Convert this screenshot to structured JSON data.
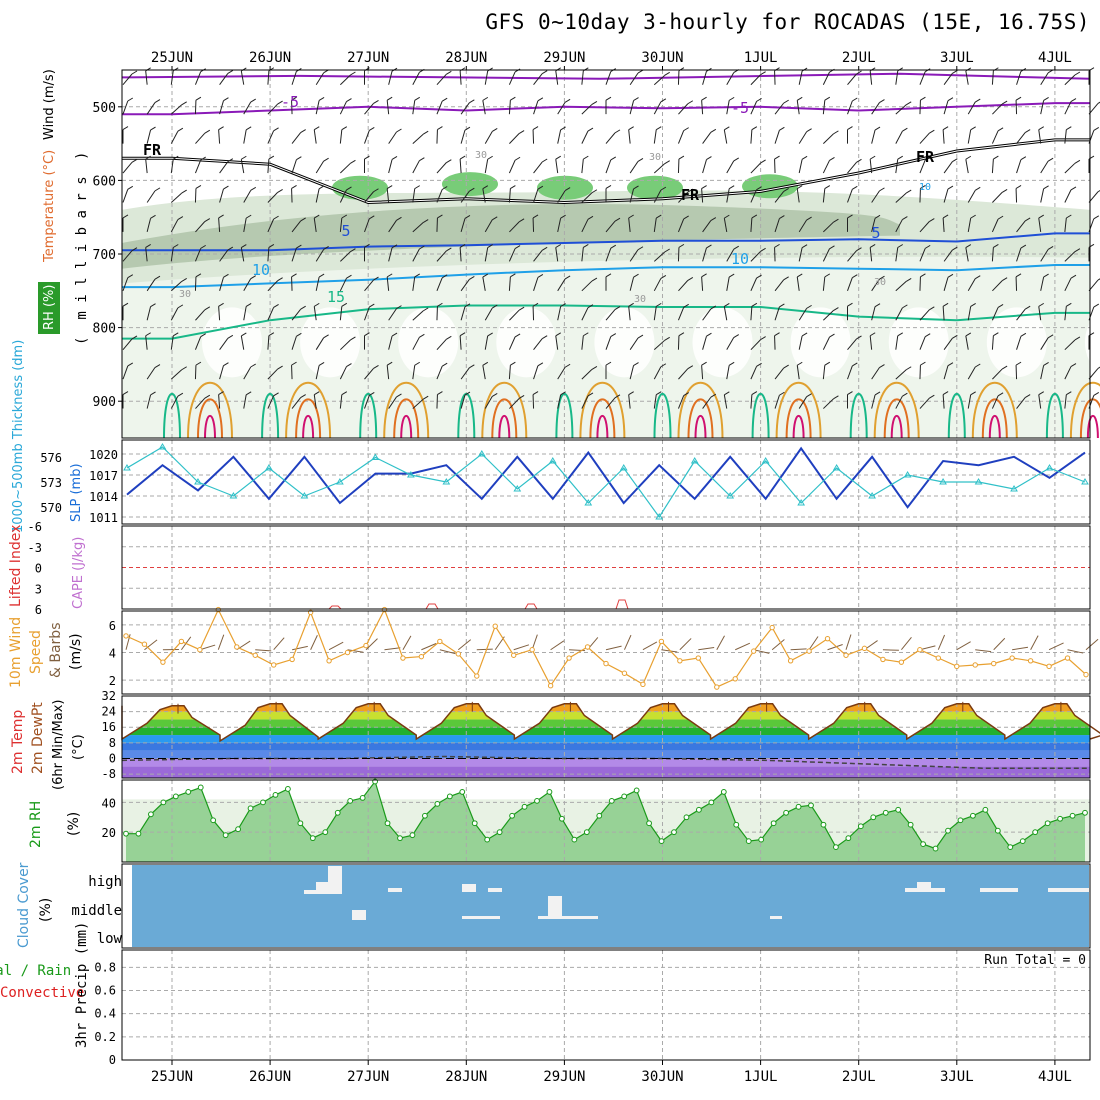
{
  "title": "GFS 0~10day 3-hourly for ROCADAS (15E, 16.75S)",
  "colors": {
    "temp500": "#8a1ab8",
    "temp_cold": "#1f4fd6",
    "temp10": "#1fa0e8",
    "temp15": "#18b888",
    "temp20": "#e0a030",
    "temp25": "#e07020",
    "temp30": "#d01070",
    "freezing": "#000000",
    "rh30": "#eef5ec",
    "rh50": "#dce8d8",
    "rh70": "#b6c9b0",
    "rh90": "#78cc78",
    "thickness": "#1f3fbf",
    "slp": "#30c0c8",
    "wind10": "#e8a030",
    "barbs": "#806040",
    "rh2m": "#1a9a1a",
    "cloud": "#6aaad6",
    "precip_label": "#1a9a1a",
    "convective": "#dd2020"
  },
  "chart_data": [
    {
      "panel": "upper-air",
      "type": "heatmap",
      "ylabel": "(millibars)",
      "ylabel_vertical": "m i l l i b a r s",
      "legend_labels": [
        "RH (%)",
        "Temperature (°C)",
        "Wind (m/s)"
      ],
      "y_ticks": [
        500,
        600,
        700,
        800,
        900
      ],
      "ylim": [
        450,
        950
      ],
      "x": [
        "25JUN",
        "26JUN",
        "27JUN",
        "28JUN",
        "29JUN",
        "30JUN",
        "1JUL",
        "2JUL",
        "3JUL",
        "4JUL"
      ],
      "contour_labels": [
        "-5",
        "-5",
        "5",
        "5",
        "10",
        "10",
        "15",
        "FR",
        "FR",
        "FR",
        "30",
        "30",
        "30",
        "30",
        "10",
        "30"
      ],
      "isotherms": [
        {
          "label": "-5",
          "level": [
            510,
            505,
            500,
            505,
            500,
            502,
            500,
            505,
            500,
            495
          ]
        },
        {
          "label": "5",
          "level": [
            695,
            695,
            690,
            688,
            685,
            682,
            682,
            680,
            683,
            672
          ]
        },
        {
          "label": "10",
          "level": [
            745,
            740,
            735,
            728,
            722,
            718,
            718,
            720,
            722,
            715
          ]
        },
        {
          "label": "15",
          "level": [
            815,
            790,
            775,
            770,
            770,
            772,
            772,
            785,
            790,
            780
          ]
        },
        {
          "label": "FR",
          "level": [
            570,
            578,
            630,
            625,
            630,
            625,
            615,
            590,
            560,
            545
          ]
        }
      ]
    },
    {
      "panel": "thickness-slp",
      "type": "line",
      "ylabel_left": "1000~500mb Thickness (dm)",
      "ylabel_right": "SLP (mb)",
      "left_ticks": [
        570,
        573,
        576
      ],
      "right_ticks": [
        1011,
        1014,
        1017,
        1020
      ],
      "ylim_left": [
        568,
        578
      ],
      "ylim_right": [
        1010,
        1022
      ],
      "series": [
        {
          "name": "Thickness",
          "values": [
            571.5,
            575,
            572,
            576,
            571,
            576,
            570.5,
            574,
            574,
            575,
            571,
            576,
            571,
            576.5,
            570.5,
            575,
            571,
            576,
            571,
            577,
            571,
            576,
            570,
            575.5,
            575,
            576,
            573.5,
            576.5
          ]
        },
        {
          "name": "SLP",
          "values": [
            1018,
            1021,
            1016,
            1014,
            1018,
            1014,
            1016,
            1019.5,
            1017,
            1016,
            1020,
            1015,
            1019,
            1013,
            1018,
            1011,
            1019,
            1014,
            1019,
            1013,
            1018,
            1014,
            1017,
            1016,
            1016,
            1015,
            1018,
            1016
          ]
        }
      ]
    },
    {
      "panel": "lifted-index-cape",
      "type": "line",
      "ylabel_left": "Lifted Index",
      "ylabel_right": "CAPE (J/kg)",
      "y_ticks": [
        -6,
        -3,
        0,
        3,
        6
      ],
      "ylim": [
        -6,
        6
      ]
    },
    {
      "panel": "10m-wind",
      "type": "line",
      "ylabel": "10m Wind Speed & Barbs (m/s)",
      "label_lines": [
        "10m Wind",
        "Speed",
        "& Barbs",
        "(m/s)"
      ],
      "y_ticks": [
        2,
        4,
        6
      ],
      "ylim": [
        1,
        7
      ],
      "values": [
        5.2,
        4.6,
        3.3,
        4.8,
        4.2,
        7.1,
        4.4,
        3.8,
        3.1,
        3.5,
        6.9,
        3.4,
        4.0,
        4.5,
        7.1,
        3.6,
        3.7,
        4.8,
        3.9,
        2.3,
        5.9,
        3.8,
        4.2,
        1.6,
        3.6,
        4.4,
        3.2,
        2.5,
        1.7,
        4.8,
        3.4,
        3.6,
        1.5,
        2.1,
        4.1,
        5.8,
        3.4,
        4.1,
        5.0,
        3.8,
        4.3,
        3.5,
        3.3,
        4.2,
        3.6,
        3.0,
        3.1,
        3.2,
        3.6,
        3.4,
        3.0,
        3.6,
        2.4
      ]
    },
    {
      "panel": "2m-temp",
      "type": "area",
      "ylabel": "2m Temp 2m DewPt (6hr Min/Max) (°C)",
      "label_lines": [
        "2m Temp",
        "2m DewPt",
        "(6hr Min/Max)",
        "(°C)"
      ],
      "y_ticks": [
        -8,
        0,
        8,
        16,
        24,
        32
      ],
      "ylim": [
        -10,
        32
      ],
      "temp_max": [
        27,
        28,
        28,
        28,
        28,
        28,
        28,
        28,
        28,
        28
      ],
      "temp_min": [
        10,
        9,
        10,
        10,
        10,
        10,
        10,
        10,
        10,
        10
      ],
      "dewpoint": [
        -1,
        0,
        0,
        1,
        0,
        0,
        -1,
        -3,
        -5,
        -5
      ]
    },
    {
      "panel": "2m-rh",
      "type": "area",
      "ylabel": "2m RH (%)",
      "label_lines": [
        "2m RH",
        "(%)"
      ],
      "y_ticks": [
        20,
        40
      ],
      "ylim": [
        0,
        55
      ],
      "values": [
        19,
        19,
        32,
        40,
        44,
        47,
        50,
        28,
        18,
        22,
        36,
        40,
        45,
        49,
        26,
        16,
        20,
        33,
        41,
        43,
        54,
        26,
        16,
        18,
        31,
        39,
        44,
        47,
        26,
        15,
        20,
        31,
        37,
        41,
        47,
        29,
        15,
        20,
        31,
        41,
        44,
        48,
        26,
        14,
        20,
        30,
        35,
        40,
        47,
        25,
        14,
        15,
        26,
        33,
        37,
        38,
        25,
        10,
        16,
        24,
        30,
        33,
        35,
        25,
        12,
        9,
        21,
        28,
        31,
        35,
        21,
        10,
        14,
        20,
        26,
        29,
        31,
        33
      ]
    },
    {
      "panel": "cloud-cover",
      "type": "heatmap",
      "ylabel": "Cloud Cover (%)",
      "label_lines": [
        "Cloud Cover",
        "(%)"
      ],
      "levels": [
        "high",
        "middle",
        "low"
      ]
    },
    {
      "panel": "precip",
      "type": "bar",
      "ylabel": "3hr Precip (mm)",
      "series_labels": [
        "Total / Rain",
        "Convective"
      ],
      "annotation": "Run Total = 0",
      "y_ticks": [
        0,
        0.2,
        0.4,
        0.6,
        0.8
      ],
      "ylim": [
        0,
        0.95
      ]
    }
  ]
}
